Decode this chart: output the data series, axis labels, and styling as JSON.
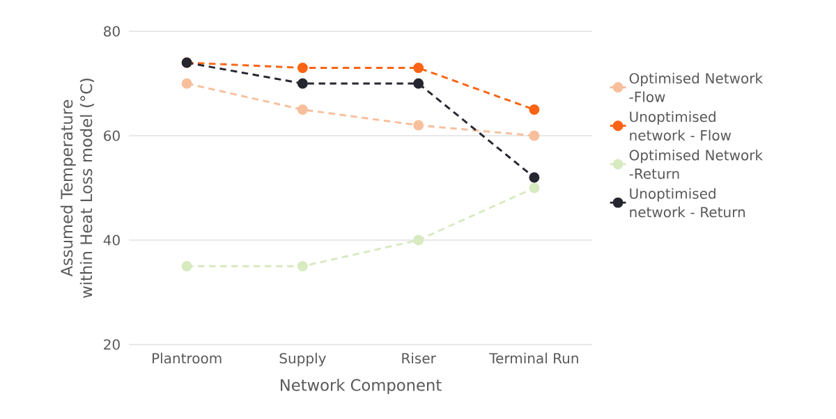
{
  "chart_data": {
    "type": "line",
    "xlabel": "Network Component",
    "ylabel": "Assumed Temperature within Heat Loss model  (°C)",
    "categories": [
      "Plantroom",
      "Supply",
      "Riser",
      "Terminal Run"
    ],
    "series": [
      {
        "name": "Optimised Network -Flow",
        "color": "#f8bf9c",
        "values": [
          70,
          65,
          62,
          60
        ]
      },
      {
        "name": "Unoptimised network - Flow",
        "color": "#fa6414",
        "values": [
          74,
          73,
          73,
          65
        ]
      },
      {
        "name": "Optimised Network -Return",
        "color": "#d7eac0",
        "values": [
          35,
          35,
          40,
          50
        ]
      },
      {
        "name": "Unoptimised network - Return",
        "color": "#262630",
        "values": [
          74,
          70,
          70,
          52
        ]
      }
    ],
    "ylim": [
      20,
      80
    ],
    "yticks": [
      20,
      40,
      60,
      80
    ],
    "grid": "y",
    "legend": "right",
    "marker": "circle",
    "line_style": "dashed"
  }
}
